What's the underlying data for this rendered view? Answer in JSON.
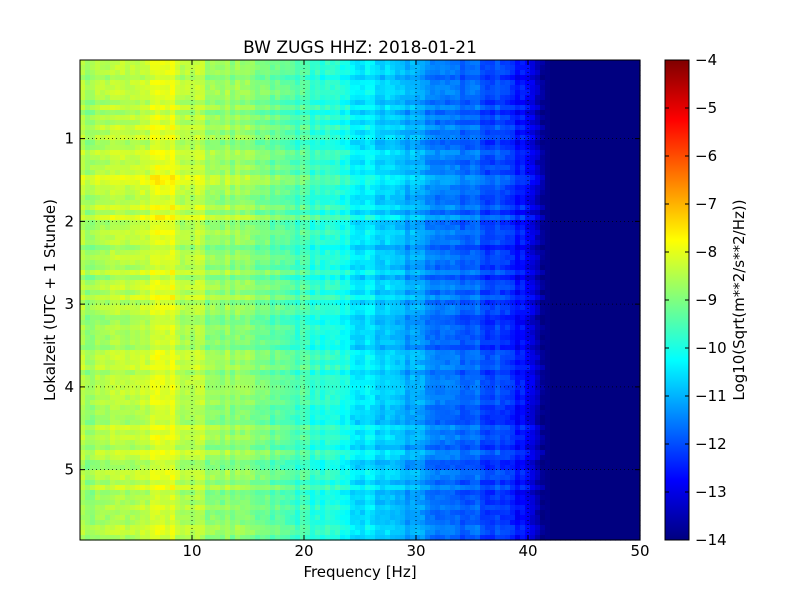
{
  "chart_data": {
    "type": "heatmap",
    "title": "BW ZUGS HHZ: 2018-01-21",
    "xlabel": "Frequency [Hz]",
    "ylabel": "Lokalzeit (UTC + 1 Stunde)",
    "xlim": [
      0,
      50
    ],
    "ylim": [
      5.85,
      0.05
    ],
    "x_ticks": [
      10,
      20,
      30,
      40,
      50
    ],
    "y_ticks": [
      1,
      2,
      3,
      4,
      5
    ],
    "grid": true,
    "colormap": "jet",
    "colorbar": {
      "label": "Log10(Sqrt(m**2/s**2/Hz))",
      "range": [
        -14,
        -4
      ],
      "ticks": [
        -4,
        -5,
        -6,
        -7,
        -8,
        -9,
        -10,
        -11,
        -12,
        -13,
        -14
      ]
    },
    "frequency_profile": {
      "x": [
        0,
        5,
        8,
        10,
        15,
        20,
        25,
        30,
        35,
        38,
        40,
        41,
        42,
        45,
        50
      ],
      "values": [
        -8.6,
        -8.4,
        -8.1,
        -8.5,
        -9.0,
        -9.6,
        -10.4,
        -11.2,
        -11.8,
        -12.2,
        -12.8,
        -13.6,
        -14,
        -14,
        -14
      ]
    }
  }
}
